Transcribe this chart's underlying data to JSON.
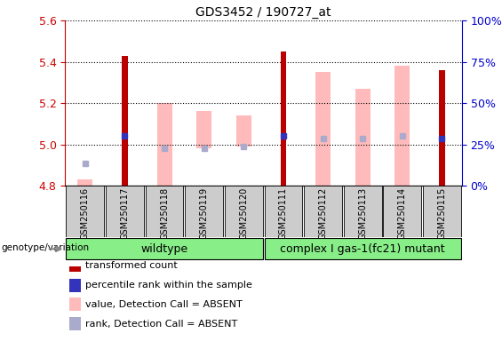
{
  "title": "GDS3452 / 190727_at",
  "samples": [
    "GSM250116",
    "GSM250117",
    "GSM250118",
    "GSM250119",
    "GSM250120",
    "GSM250111",
    "GSM250112",
    "GSM250113",
    "GSM250114",
    "GSM250115"
  ],
  "ylim_left": [
    4.8,
    5.6
  ],
  "ylim_right": [
    0,
    100
  ],
  "yticks_left": [
    4.8,
    5.0,
    5.2,
    5.4,
    5.6
  ],
  "yticks_right": [
    0,
    25,
    50,
    75,
    100
  ],
  "red_bar_color": "#bb0000",
  "pink_bar_color": "#ffbbbb",
  "blue_marker_color": "#3333bb",
  "light_blue_color": "#aaaacc",
  "transformed_counts": [
    null,
    5.43,
    null,
    null,
    null,
    5.45,
    null,
    null,
    null,
    5.36
  ],
  "pink_bar_top": [
    4.83,
    null,
    5.2,
    5.16,
    5.14,
    null,
    5.35,
    5.27,
    5.38,
    null
  ],
  "pink_bar_bottom": [
    4.8,
    null,
    4.8,
    4.98,
    4.99,
    null,
    4.8,
    4.8,
    4.8,
    4.8
  ],
  "blue_marker_y": [
    null,
    5.04,
    null,
    null,
    null,
    5.04,
    null,
    null,
    null,
    5.03
  ],
  "light_blue_y": [
    4.91,
    null,
    4.98,
    4.98,
    4.99,
    null,
    5.03,
    5.03,
    5.04,
    null
  ],
  "wt_label": "wildtype",
  "mut_label": "complex I gas-1(fc21) mutant",
  "genotype_label": "genotype/variation",
  "legend_items": [
    {
      "color": "#bb0000",
      "label": "transformed count"
    },
    {
      "color": "#3333bb",
      "label": "percentile rank within the sample"
    },
    {
      "color": "#ffbbbb",
      "label": "value, Detection Call = ABSENT"
    },
    {
      "color": "#aaaacc",
      "label": "rank, Detection Call = ABSENT"
    }
  ],
  "tick_color_left": "#cc0000",
  "tick_color_right": "#0000cc",
  "sample_box_color": "#cccccc",
  "group_box_color": "#88ee88"
}
